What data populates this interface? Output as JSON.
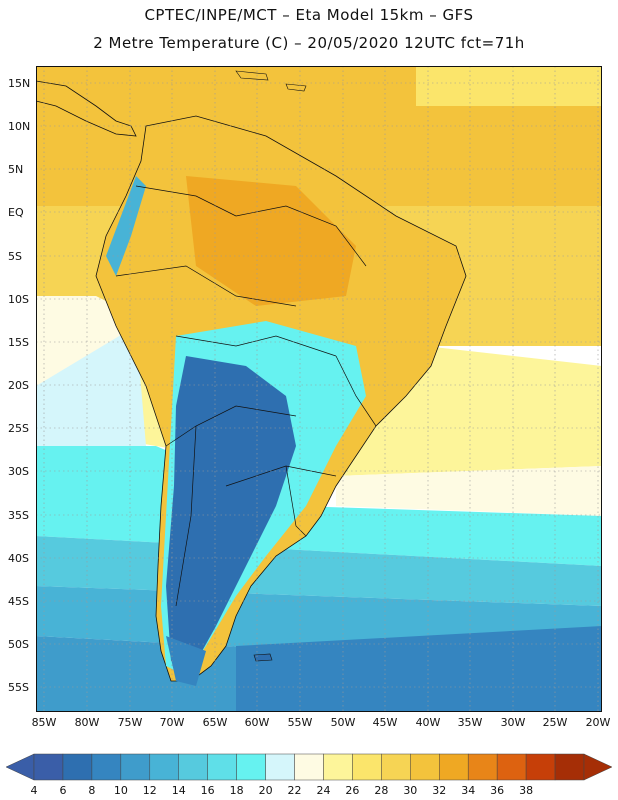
{
  "header": {
    "line1": "CPTEC/INPE/MCT –  Eta Model 15km – GFS",
    "line2": "2 Metre Temperature (C) – 20/05/2020 12UTC fct=71h"
  },
  "axes": {
    "lat_labels": [
      "15N",
      "10N",
      "5N",
      "EQ",
      "5S",
      "10S",
      "15S",
      "20S",
      "25S",
      "30S",
      "35S",
      "40S",
      "45S",
      "50S",
      "55S"
    ],
    "lon_labels": [
      "85W",
      "80W",
      "75W",
      "70W",
      "65W",
      "60W",
      "55W",
      "50W",
      "45W",
      "40W",
      "35W",
      "30W",
      "25W",
      "20W"
    ],
    "lat_range": [
      -58,
      17
    ],
    "lon_range": [
      -86,
      -19
    ],
    "grid": true
  },
  "colorbar": {
    "labels": [
      "4",
      "6",
      "8",
      "10",
      "12",
      "14",
      "16",
      "18",
      "20",
      "22",
      "24",
      "26",
      "28",
      "30",
      "32",
      "34",
      "36",
      "38"
    ],
    "colors": [
      "#3a5ea8",
      "#2e6fb0",
      "#3585c0",
      "#3f9ccb",
      "#48b3d6",
      "#56cade",
      "#5fdfe8",
      "#66f2f0",
      "#d5f6fb",
      "#fefbe3",
      "#fdf59a",
      "#fbe56b",
      "#f6d454",
      "#f3c33c",
      "#efa823",
      "#e88518",
      "#dd6210",
      "#c63f08",
      "#a52e06"
    ],
    "arrow_left_color": "#3a5ea8",
    "arrow_right_color": "#a52e06"
  }
}
